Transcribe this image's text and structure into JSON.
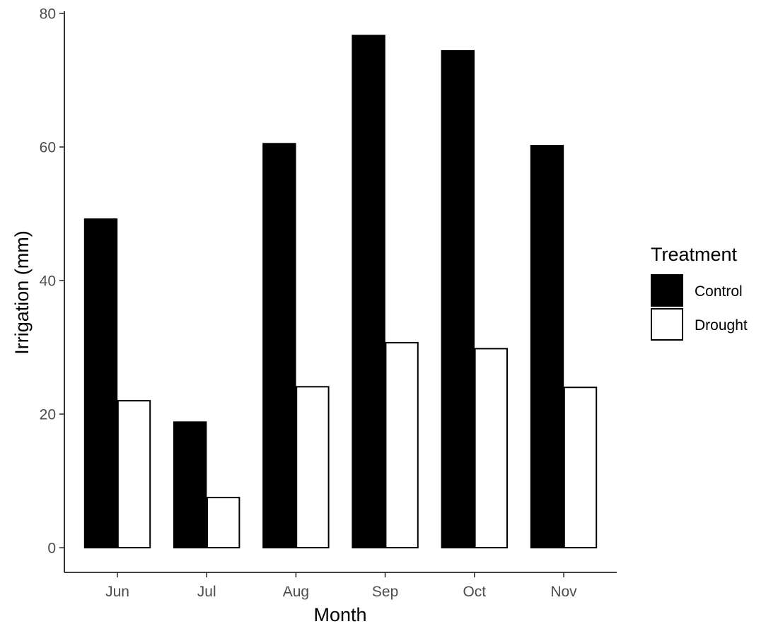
{
  "chart_data": {
    "type": "bar",
    "title": "",
    "xlabel": "Month",
    "ylabel": "Irrigation (mm)",
    "categories": [
      "Jun",
      "Jul",
      "Aug",
      "Sep",
      "Oct",
      "Nov"
    ],
    "series": [
      {
        "name": "Control",
        "values": [
          49.2,
          18.8,
          60.5,
          76.7,
          74.4,
          60.2
        ],
        "fill": "#000000",
        "stroke": "#000000"
      },
      {
        "name": "Drought",
        "values": [
          22.0,
          7.5,
          24.1,
          30.7,
          29.8,
          24.0
        ],
        "fill": "#ffffff",
        "stroke": "#000000"
      }
    ],
    "ylim": [
      0,
      80
    ],
    "yticks": [
      "0",
      "20",
      "40",
      "60",
      "80"
    ],
    "ytick_values": [
      0,
      20,
      40,
      60,
      80
    ],
    "grid": false,
    "legend": {
      "title": "Treatment",
      "position": "right"
    }
  }
}
